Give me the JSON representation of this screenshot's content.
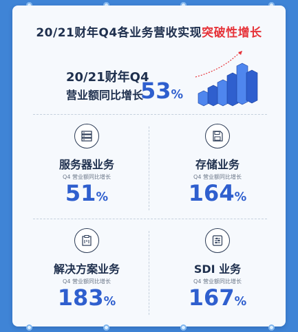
{
  "header": {
    "title_main": "20/21财年Q4各业务营收实现",
    "title_highlight": "突破性增长"
  },
  "hero": {
    "line1": "20/21财年Q4",
    "line2": "营业额同比增长",
    "value": "53",
    "unit": "%"
  },
  "segments": [
    {
      "name": "服务器业务",
      "subtitle": "Q4 营业额同比增长",
      "value": "51",
      "unit": "%"
    },
    {
      "name": "存储业务",
      "subtitle": "Q4 营业额同比增长",
      "value": "164",
      "unit": "%"
    },
    {
      "name": "解决方案业务",
      "subtitle": "Q4 营业额同比增长",
      "value": "183",
      "unit": "%"
    },
    {
      "name": "SDI 业务",
      "subtitle": "Q4 营业额同比增长",
      "value": "167",
      "unit": "%"
    }
  ],
  "colors": {
    "background": "#3f84d6",
    "card": "#f6f9fd",
    "text_dark": "#1e2f4d",
    "accent_blue": "#2f5fce",
    "highlight_red": "#e6343a"
  },
  "icons": [
    "server-icon",
    "floppy-disk-icon",
    "clipboard-icon",
    "sliders-icon"
  ]
}
